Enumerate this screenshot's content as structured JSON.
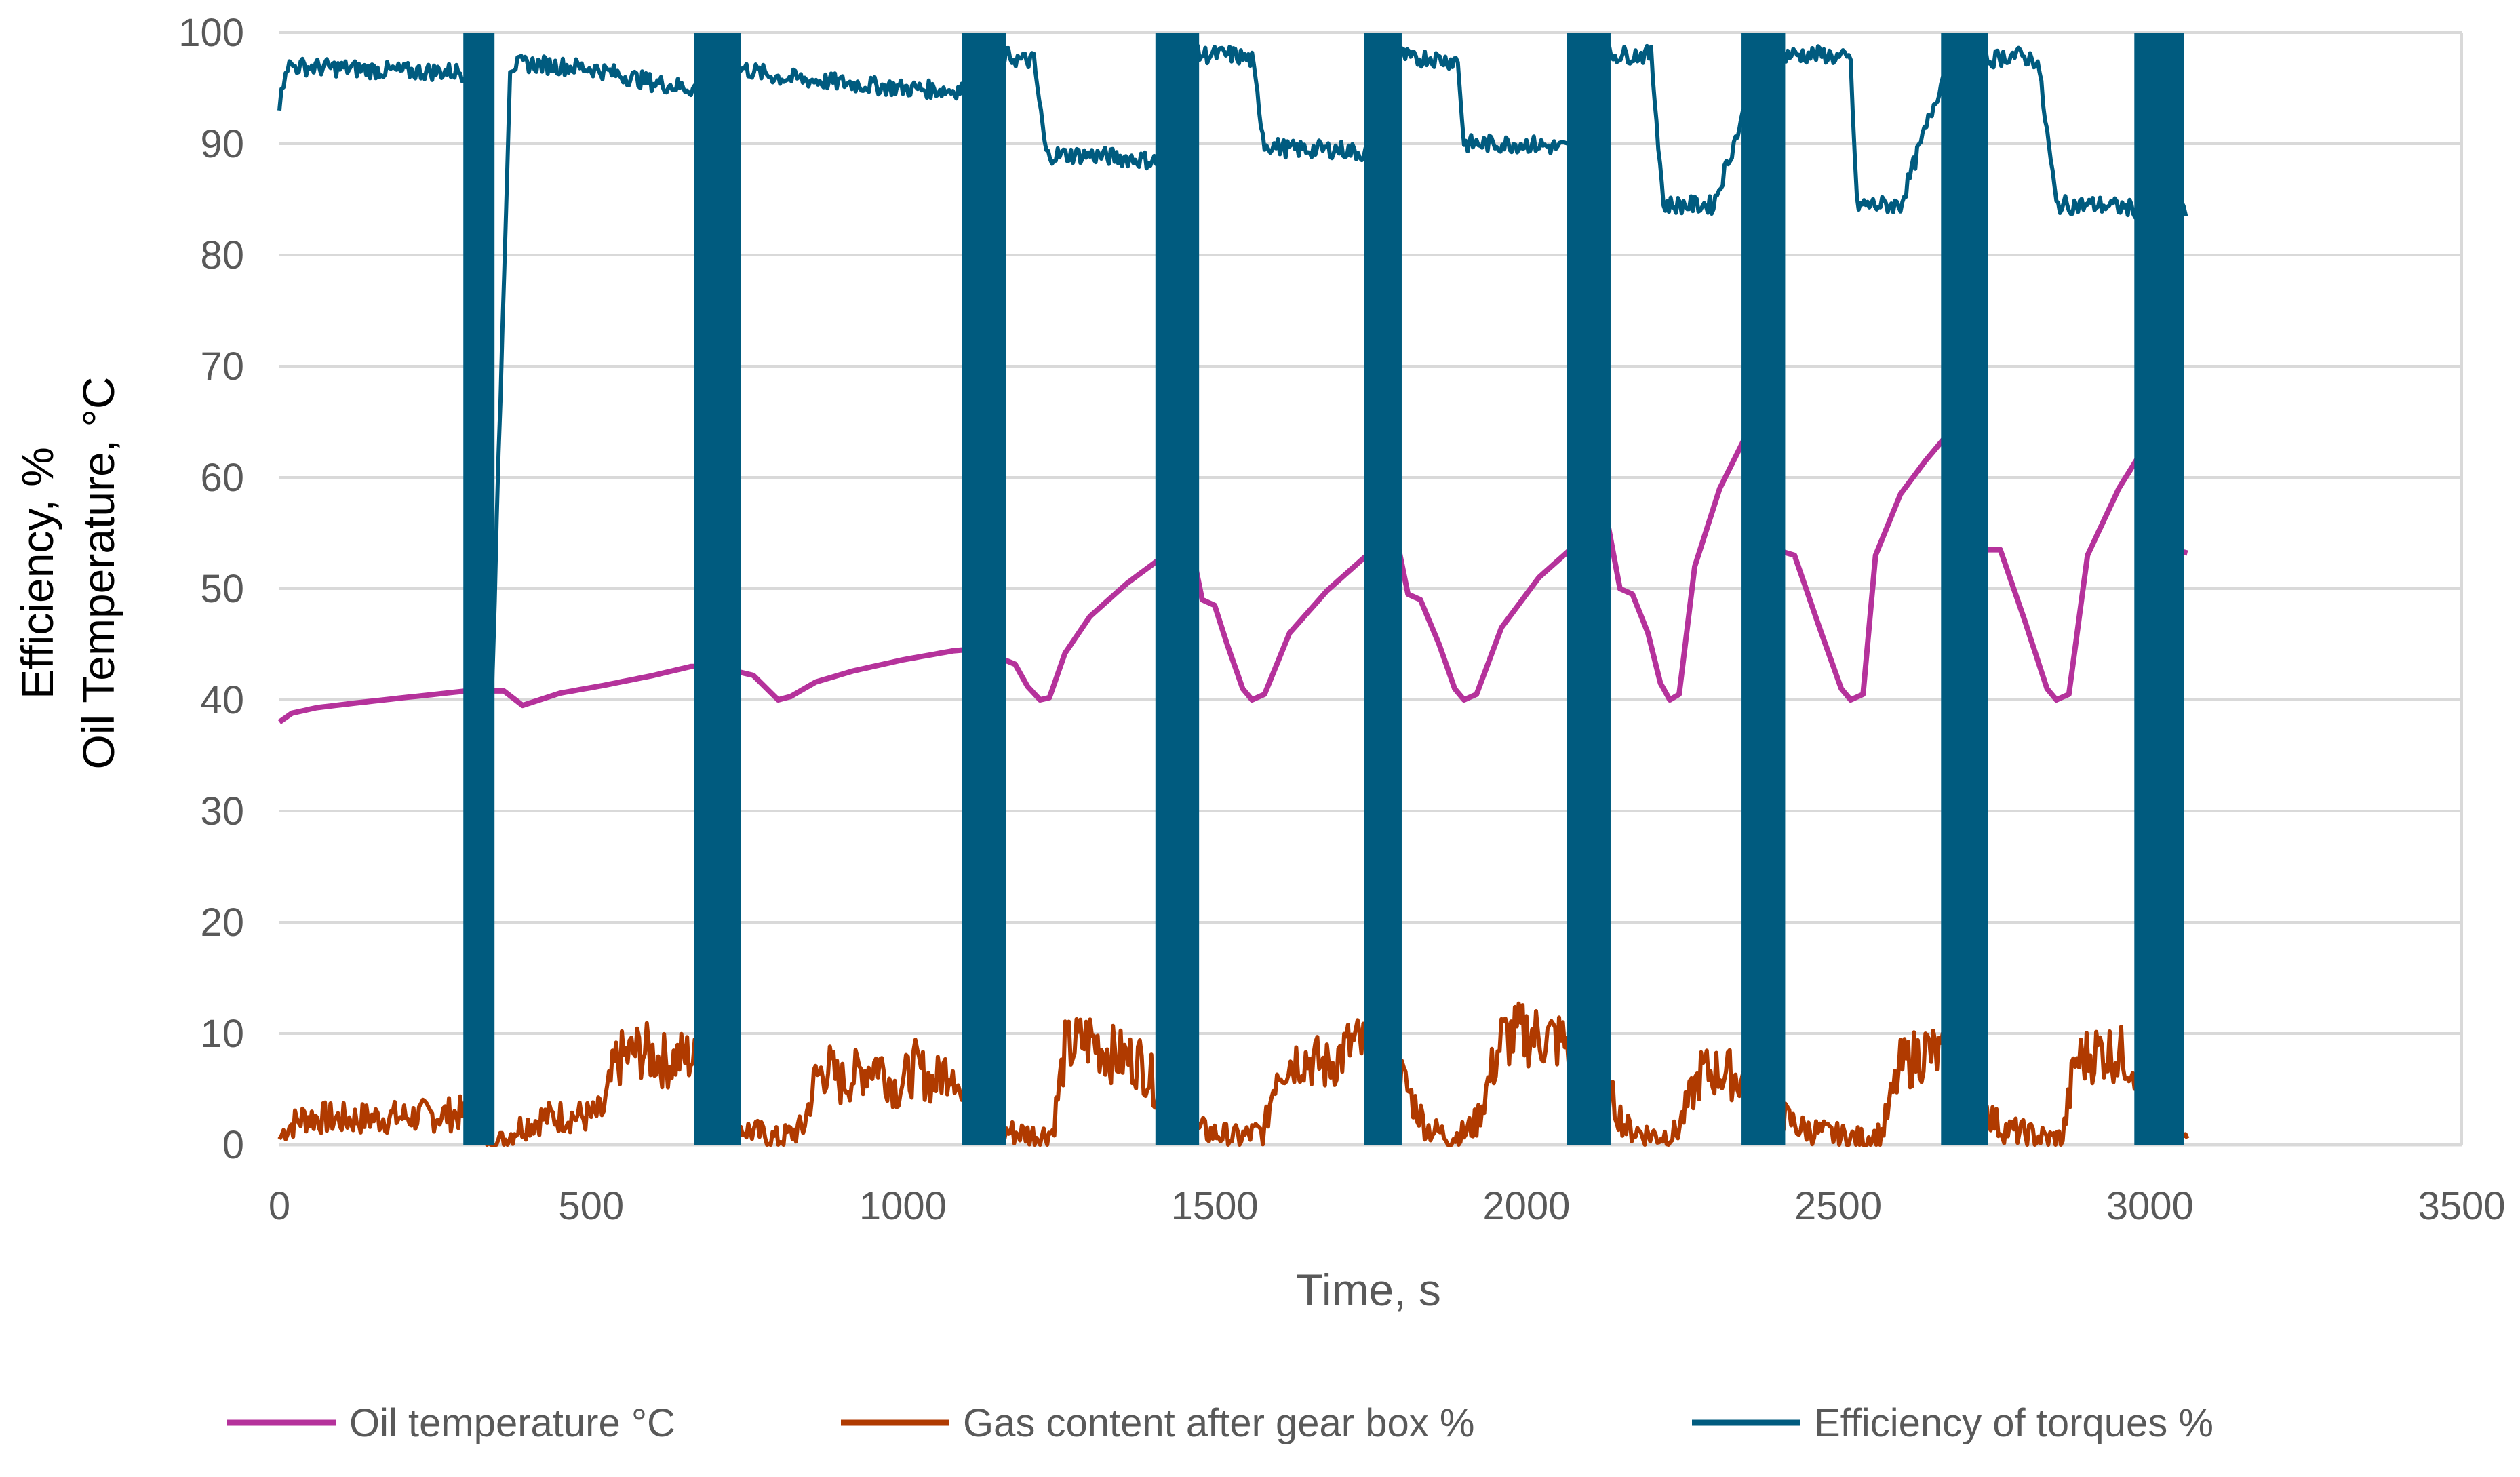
{
  "chart_data": {
    "type": "line",
    "title": "",
    "xlabel": "Time, s",
    "ylabel_lines": [
      "Efficiency, %",
      "Oil Temperature, °C"
    ],
    "xlim": [
      0,
      3500
    ],
    "ylim": [
      0,
      100
    ],
    "x_ticks": [
      0,
      500,
      1000,
      1500,
      2000,
      2500,
      3000,
      3500
    ],
    "y_ticks": [
      0,
      10,
      20,
      30,
      40,
      50,
      60,
      70,
      80,
      90,
      100
    ],
    "x_tick_labels": [
      "0",
      "500",
      "1000",
      "1500",
      "2000",
      "2500",
      "3000",
      "3500"
    ],
    "y_tick_labels": [
      "0",
      "10",
      "20",
      "30",
      "40",
      "50",
      "60",
      "70",
      "80",
      "90",
      "100"
    ],
    "grid": "horizontal",
    "legend_position": "bottom",
    "series": [
      {
        "name": "Oil temperature °C",
        "color": "#b5329b",
        "x": [
          0,
          20,
          60,
          120,
          200,
          300,
          360,
          390,
          450,
          520,
          600,
          660,
          700,
          760,
          800,
          820,
          860,
          920,
          1000,
          1080,
          1120,
          1180,
          1200,
          1220,
          1235,
          1260,
          1300,
          1360,
          1420,
          1460,
          1480,
          1500,
          1520,
          1545,
          1560,
          1580,
          1620,
          1680,
          1740,
          1790,
          1810,
          1830,
          1860,
          1885,
          1900,
          1920,
          1960,
          2020,
          2080,
          2130,
          2150,
          2170,
          2195,
          2215,
          2230,
          2245,
          2270,
          2310,
          2350,
          2380,
          2400,
          2430,
          2470,
          2505,
          2520,
          2540,
          2560,
          2600,
          2640,
          2670,
          2700,
          2740,
          2760,
          2800,
          2835,
          2850,
          2870,
          2900,
          2950,
          3000,
          3040,
          3060
        ],
        "y": [
          38,
          38.8,
          39.3,
          39.7,
          40.2,
          40.8,
          40.8,
          39.5,
          40.6,
          41.3,
          42.2,
          43,
          43,
          42.2,
          40,
          40.3,
          41.6,
          42.6,
          43.6,
          44.4,
          44.6,
          43.2,
          41.2,
          40,
          40.2,
          44.2,
          47.5,
          50.5,
          53,
          54.5,
          49,
          48.5,
          45,
          41,
          40,
          40.5,
          46,
          49.8,
          52.8,
          55,
          49.5,
          49,
          45,
          41,
          40,
          40.5,
          46.5,
          51,
          54,
          56,
          50,
          49.5,
          46,
          41.5,
          40,
          40.5,
          52,
          59,
          63.5,
          63.5,
          53.5,
          53,
          46.5,
          41,
          40,
          40.5,
          53,
          58.5,
          61.5,
          63.5,
          54,
          53.5,
          53.5,
          47,
          41,
          40,
          40.5,
          53,
          59,
          63.5,
          53.5,
          53.2
        ]
      },
      {
        "name": "Gas content  after gear box  %",
        "color": "#b03a00",
        "x": [
          0,
          10,
          40,
          100,
          200,
          290,
          310,
          330,
          360,
          380,
          420,
          460,
          500,
          520,
          540,
          580,
          620,
          660,
          700,
          740,
          800,
          820,
          840,
          860,
          880,
          900,
          930,
          960,
          990,
          1020,
          1050,
          1080,
          1100,
          1130,
          1160,
          1200,
          1220,
          1240,
          1260,
          1300,
          1340,
          1380,
          1420,
          1460,
          1500,
          1540,
          1560,
          1580,
          1600,
          1640,
          1680,
          1720,
          1760,
          1800,
          1840,
          1880,
          1900,
          1920,
          1960,
          2000,
          2040,
          2080,
          2120,
          2160,
          2190,
          2210,
          2240,
          2280,
          2320,
          2360,
          2400,
          2440,
          2480,
          2520,
          2540,
          2570,
          2600,
          2640,
          2680,
          2720,
          2760,
          2800,
          2840,
          2860,
          2880,
          2920,
          2960,
          3000,
          3040,
          3060
        ],
        "y": [
          0.5,
          1.5,
          2.5,
          2.3,
          2.5,
          2.8,
          2,
          0.5,
          0.3,
          1.5,
          2.4,
          2.6,
          2.5,
          3,
          7.5,
          8.5,
          7.5,
          8,
          4.5,
          1.5,
          0.5,
          1,
          1.5,
          6,
          7,
          5.5,
          6.5,
          7.5,
          5,
          7,
          5.5,
          7.5,
          2.5,
          1.5,
          1.2,
          1,
          0.8,
          1.2,
          8.5,
          9.5,
          8,
          7.5,
          4,
          1.5,
          1,
          0.6,
          1,
          1.2,
          7,
          8,
          7,
          9,
          8.5,
          6,
          1.5,
          0.7,
          1,
          2,
          9.5,
          10,
          9.5,
          9,
          6,
          1.5,
          1,
          0.8,
          1,
          6.5,
          6.5,
          5.5,
          3,
          1.5,
          1,
          0.6,
          0.5,
          1,
          7,
          8.5,
          7.5,
          4.5,
          1.5,
          1,
          0.5,
          0.6,
          7.5,
          8.5,
          8,
          6,
          2,
          1.8
        ]
      },
      {
        "name": "Efficiency of torques %",
        "color": "#005b7f",
        "x": [
          0,
          10,
          100,
          200,
          290,
          310,
          330,
          370,
          400,
          500,
          600,
          660,
          700,
          740,
          800,
          900,
          1000,
          1080,
          1100,
          1130,
          1160,
          1190,
          1210,
          1230,
          1300,
          1400,
          1440,
          1470,
          1500,
          1530,
          1560,
          1580,
          1620,
          1700,
          1760,
          1800,
          1820,
          1840,
          1870,
          1890,
          1900,
          1920,
          2000,
          2080,
          2100,
          2130,
          2160,
          2190,
          2200,
          2220,
          2240,
          2300,
          2380,
          2410,
          2440,
          2480,
          2520,
          2530,
          2550,
          2600,
          2680,
          2710,
          2740,
          2780,
          2820,
          2850,
          2870,
          2920,
          3000,
          3060
        ],
        "y": [
          93,
          97,
          96.8,
          96.5,
          96.5,
          96,
          20,
          97,
          97.2,
          96.8,
          95.5,
          95,
          95,
          96.8,
          96,
          95.5,
          95,
          94.8,
          95,
          98,
          98,
          97.5,
          97.5,
          89,
          89,
          88.5,
          88,
          98,
          98,
          98,
          97.5,
          90,
          89.5,
          89.5,
          89,
          98,
          97.5,
          97.8,
          97.5,
          97.5,
          90,
          90,
          90,
          89.5,
          98,
          98,
          98,
          98,
          98,
          84.5,
          84.5,
          84.5,
          98,
          98,
          98,
          98,
          97.5,
          84.5,
          84.5,
          84.5,
          98,
          98,
          97.5,
          98,
          97.5,
          84.5,
          84.5,
          84.5,
          84,
          84
        ],
        "oscillation_bands_x": [
          [
            295,
            345
          ],
          [
            665,
            740
          ],
          [
            1095,
            1165
          ],
          [
            1405,
            1475
          ],
          [
            1740,
            1800
          ],
          [
            2065,
            2135
          ],
          [
            2345,
            2415
          ],
          [
            2665,
            2740
          ],
          [
            2975,
            3055
          ]
        ],
        "oscillation_band_range": [
          0,
          100
        ]
      }
    ]
  }
}
